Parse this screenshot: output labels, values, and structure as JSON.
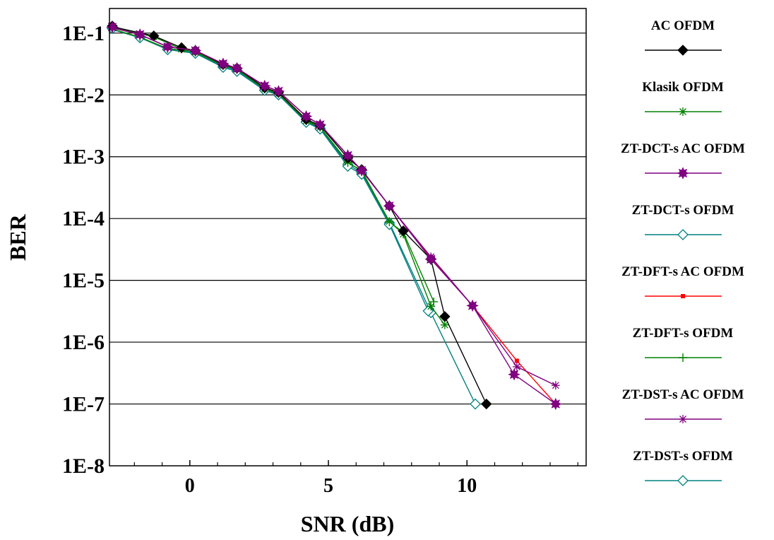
{
  "chart_data": {
    "type": "line",
    "title": "",
    "xlabel": "SNR (dB)",
    "ylabel": "BER",
    "xlim": [
      -2.9,
      14.3
    ],
    "ylim": [
      1e-08,
      0.25
    ],
    "yscale": "log",
    "x_ticks": [
      0,
      5,
      10
    ],
    "y_ticks": [
      {
        "value": 0.1,
        "label": "1E-1"
      },
      {
        "value": 0.01,
        "label": "1E-2"
      },
      {
        "value": 0.001,
        "label": "1E-3"
      },
      {
        "value": 0.0001,
        "label": "1E-4"
      },
      {
        "value": 1e-05,
        "label": "1E-5"
      },
      {
        "value": 1e-06,
        "label": "1E-6"
      },
      {
        "value": 1e-07,
        "label": "1E-7"
      },
      {
        "value": 1e-08,
        "label": "1E-8"
      }
    ],
    "grid": "horizontal",
    "legend_position": "right",
    "series": [
      {
        "name": "AC OFDM",
        "color": "#000000",
        "marker": "diamond-filled",
        "x": [
          -2.9,
          -1.3,
          -0.3,
          0.2,
          1.2,
          1.7,
          2.7,
          3.2,
          4.2,
          4.7,
          5.7,
          6.2,
          7.2,
          7.7,
          8.7,
          9.2,
          10.7
        ],
        "y": [
          0.13,
          0.09,
          0.058,
          0.052,
          0.031,
          0.027,
          0.013,
          0.011,
          0.004,
          0.0032,
          0.00095,
          0.00062,
          0.00016,
          6.3e-05,
          2.2e-05,
          2.6e-06,
          1e-07
        ]
      },
      {
        "name": "Klasik OFDM",
        "color": "#008000",
        "marker": "asterisk",
        "x": [
          -2.9,
          -1.3,
          -0.3,
          0.2,
          1.2,
          1.7,
          2.7,
          3.2,
          4.2,
          4.7,
          5.7,
          6.2,
          7.2,
          7.7,
          8.7,
          9.2
        ],
        "y": [
          0.125,
          0.087,
          0.055,
          0.049,
          0.03,
          0.026,
          0.0125,
          0.0105,
          0.0038,
          0.003,
          0.00082,
          0.00058,
          9e-05,
          5.6e-05,
          3.8e-06,
          1.9e-06
        ]
      },
      {
        "name": "ZT-DCT-s AC OFDM",
        "color": "#800080",
        "marker": "star-filled",
        "x": [
          -2.9,
          -1.8,
          -0.8,
          0.2,
          1.2,
          1.7,
          2.7,
          3.2,
          4.2,
          4.7,
          5.7,
          6.2,
          7.2,
          8.7,
          10.2,
          11.7,
          13.2
        ],
        "y": [
          0.125,
          0.095,
          0.06,
          0.052,
          0.032,
          0.027,
          0.014,
          0.0115,
          0.0045,
          0.0033,
          0.00105,
          0.0006,
          0.00016,
          2.2e-05,
          3.9e-06,
          3e-07,
          1e-07
        ]
      },
      {
        "name": "ZT-DCT-s OFDM",
        "color": "#008080",
        "marker": "diamond-open",
        "x": [
          -2.9,
          -1.8,
          -0.8,
          0.2,
          1.2,
          1.7,
          2.7,
          3.2,
          4.2,
          4.7,
          5.7,
          6.2,
          7.2,
          8.7,
          10.3
        ],
        "y": [
          0.12,
          0.085,
          0.055,
          0.048,
          0.029,
          0.025,
          0.012,
          0.0102,
          0.0037,
          0.0029,
          0.00075,
          0.00055,
          8.5e-05,
          3e-06,
          1e-07
        ]
      },
      {
        "name": "ZT-DFT-s AC OFDM",
        "color": "#ff0000",
        "marker": "square-filled",
        "x": [
          -2.9,
          -1.8,
          -0.8,
          0.2,
          1.2,
          1.7,
          2.7,
          3.2,
          4.2,
          4.7,
          5.7,
          6.2,
          7.2,
          8.7,
          10.2,
          11.8,
          13.2
        ],
        "y": [
          0.125,
          0.095,
          0.06,
          0.052,
          0.032,
          0.027,
          0.014,
          0.0115,
          0.0045,
          0.0033,
          0.00105,
          0.0006,
          0.00016,
          2.3e-05,
          3.9e-06,
          5e-07,
          1e-07
        ]
      },
      {
        "name": "ZT-DFT-s OFDM",
        "color": "#008000",
        "marker": "plus",
        "x": [
          -2.9,
          -1.8,
          -0.8,
          0.2,
          1.2,
          1.7,
          2.7,
          3.2,
          4.2,
          4.7,
          5.7,
          6.2,
          7.2,
          7.7,
          8.8
        ],
        "y": [
          0.12,
          0.086,
          0.056,
          0.05,
          0.03,
          0.026,
          0.0125,
          0.0108,
          0.004,
          0.003,
          0.0008,
          0.0006,
          8.8e-05,
          6e-05,
          4.5e-06
        ]
      },
      {
        "name": "ZT-DST-s AC OFDM",
        "color": "#800080",
        "marker": "asterisk",
        "x": [
          -2.9,
          -1.8,
          -0.8,
          0.2,
          1.2,
          1.7,
          2.7,
          3.2,
          4.2,
          4.7,
          5.7,
          6.2,
          7.2,
          8.7,
          10.2,
          11.8,
          13.2
        ],
        "y": [
          0.125,
          0.095,
          0.06,
          0.052,
          0.032,
          0.027,
          0.014,
          0.0115,
          0.0045,
          0.0033,
          0.00105,
          0.0006,
          0.00016,
          2.4e-05,
          3.9e-06,
          4e-07,
          2e-07
        ]
      },
      {
        "name": "ZT-DST-s OFDM",
        "color": "#008080",
        "marker": "diamond-open",
        "x": [
          -2.9,
          -1.8,
          -0.8,
          0.2,
          1.2,
          1.7,
          2.7,
          3.2,
          4.2,
          4.7,
          5.7,
          6.2,
          7.2,
          8.6
        ],
        "y": [
          0.118,
          0.084,
          0.054,
          0.047,
          0.028,
          0.024,
          0.0118,
          0.01,
          0.0036,
          0.0028,
          0.0007,
          0.00052,
          8e-05,
          3.2e-06
        ]
      }
    ]
  }
}
